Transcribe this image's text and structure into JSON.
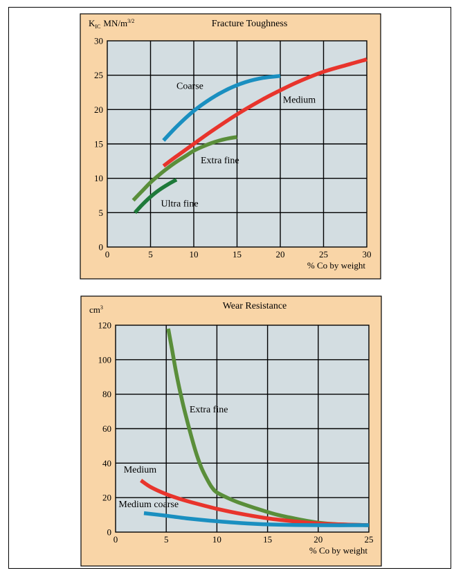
{
  "colors": {
    "panel_bg": "#f9d5a7",
    "plot_bg": "#d3dde1",
    "coarse": "#1a8fc0",
    "medium": "#e8342c",
    "extra_fine": "#5a8e3a",
    "ultra_fine": "#1e7a3a",
    "medium_coarse": "#1a8fc0"
  },
  "chart_data": [
    {
      "type": "line",
      "title": "Fracture Toughness",
      "ylabel_main": "K",
      "ylabel_sub": "IC",
      "ylabel_unit": "MN/m",
      "ylabel_sup": "3/2",
      "xlabel": "% Co by weight",
      "xlim": [
        0,
        30
      ],
      "ylim": [
        0,
        30
      ],
      "xticks": [
        0,
        5,
        10,
        15,
        20,
        25,
        30
      ],
      "yticks": [
        0,
        5,
        10,
        15,
        20,
        25,
        30
      ],
      "grid": true,
      "series": [
        {
          "name": "Coarse",
          "color_key": "coarse",
          "x": [
            6.5,
            8,
            10,
            12,
            14,
            16,
            18,
            20
          ],
          "y": [
            15.5,
            17.5,
            19.8,
            21.6,
            23,
            24,
            24.6,
            24.9
          ]
        },
        {
          "name": "Medium",
          "color_key": "medium",
          "x": [
            6.5,
            8,
            10,
            12,
            15,
            18,
            20,
            22,
            25,
            28,
            30
          ],
          "y": [
            11.8,
            13.2,
            15,
            16.8,
            19.3,
            21.5,
            22.8,
            24,
            25.5,
            26.6,
            27.3
          ]
        },
        {
          "name": "Extra fine",
          "color_key": "extra_fine",
          "x": [
            3,
            4,
            5,
            6,
            7,
            8,
            9,
            10,
            11,
            12,
            13,
            14,
            15
          ],
          "y": [
            6.8,
            8.1,
            9.4,
            10.5,
            11.5,
            12.4,
            13.2,
            14,
            14.6,
            15.1,
            15.5,
            15.8,
            16
          ]
        },
        {
          "name": "Ultra fine",
          "color_key": "ultra_fine",
          "x": [
            3.2,
            4,
            5,
            6,
            7,
            8
          ],
          "y": [
            5,
            6.1,
            7.3,
            8.3,
            9.1,
            9.8
          ]
        }
      ],
      "annotations": [
        {
          "text": "Coarse",
          "x": 8,
          "y": 23
        },
        {
          "text": "Medium",
          "x": 20.3,
          "y": 21
        },
        {
          "text": "Extra fine",
          "x": 10.8,
          "y": 12.2
        },
        {
          "text": "Ultra fine",
          "x": 6.2,
          "y": 5.9
        }
      ]
    },
    {
      "type": "line",
      "title": "Wear Resistance",
      "ylabel_unit": "cm",
      "ylabel_sup": "3",
      "xlabel": "% Co by weight",
      "xlim": [
        0,
        25
      ],
      "ylim": [
        0,
        120
      ],
      "xticks": [
        0,
        5,
        10,
        15,
        20,
        25
      ],
      "yticks": [
        0,
        20,
        40,
        60,
        80,
        100,
        120
      ],
      "grid": true,
      "series": [
        {
          "name": "Extra fine",
          "color_key": "extra_fine",
          "x": [
            5.2,
            5.6,
            6,
            6.5,
            7,
            7.5,
            8,
            8.5,
            9,
            9.5,
            10,
            11,
            12,
            14,
            16,
            18,
            20,
            22,
            25
          ],
          "y": [
            118,
            105,
            92,
            78,
            66,
            55,
            45,
            37,
            31,
            26,
            23,
            20,
            17.5,
            13.5,
            10,
            7.5,
            5.5,
            4.5,
            4
          ]
        },
        {
          "name": "Medium",
          "color_key": "medium",
          "x": [
            2.5,
            3.5,
            5,
            6.5,
            8,
            10,
            12,
            15,
            18,
            20,
            22,
            25
          ],
          "y": [
            30,
            26,
            22,
            19,
            16.5,
            13.5,
            11,
            8,
            6,
            5,
            4.5,
            4
          ]
        },
        {
          "name": "Medium coarse",
          "color_key": "medium_coarse",
          "x": [
            2.8,
            5,
            7,
            10,
            13,
            16,
            20,
            25
          ],
          "y": [
            11,
            9.5,
            8,
            6.3,
            5,
            4.3,
            4,
            4
          ]
        }
      ],
      "annotations": [
        {
          "text": "Medium",
          "x": 0.8,
          "y": 34.5
        },
        {
          "text": "Extra fine",
          "x": 7.3,
          "y": 69.5
        },
        {
          "text": "Medium coarse",
          "x": 0.3,
          "y": 14.5
        }
      ]
    }
  ]
}
